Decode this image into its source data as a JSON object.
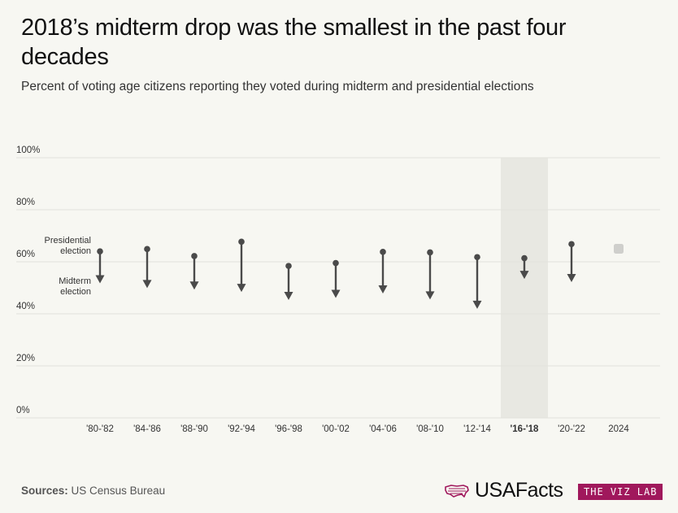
{
  "title": "2018’s midterm drop was the smallest in the past four decades",
  "subtitle": "Percent of voting age citizens reporting they voted during midterm and presidential elections",
  "source_label": "Sources:",
  "source_value": "US Census Bureau",
  "brand": {
    "name": "USAFacts",
    "tag": "THE VIZ LAB",
    "accent": "#a0185c"
  },
  "chart_data": {
    "type": "arrow-dot",
    "title": "2018’s midterm drop was the smallest in the past four decades",
    "subtitle": "Percent of voting age citizens reporting they voted during midterm and presidential elections",
    "ylim": [
      0,
      100
    ],
    "yticks": [
      "0%",
      "20%",
      "40%",
      "60%",
      "80%",
      "100%"
    ],
    "ytick_values": [
      0,
      20,
      40,
      60,
      80,
      100
    ],
    "grid": true,
    "annotations": {
      "presidential": "Presidential election",
      "midterm": "Midterm election"
    },
    "highlight": "'16-'18",
    "categories": [
      "'80-'82",
      "'84-'86",
      "'88-'90",
      "'92-'94",
      "'96-'98",
      "'00-'02",
      "'04-'06",
      "'08-'10",
      "'12-'14",
      "'16-'18",
      "'20-'22",
      "2024"
    ],
    "series": [
      {
        "name": "Presidential election",
        "values": [
          64,
          64.9,
          62.2,
          67.7,
          58.4,
          59.5,
          63.8,
          63.6,
          61.8,
          61.4,
          66.8,
          65
        ]
      },
      {
        "name": "Midterm election",
        "values": [
          51.7,
          49.9,
          49.3,
          48.4,
          45.3,
          46.1,
          47.8,
          45.5,
          41.9,
          53.4,
          52.2,
          null
        ]
      }
    ],
    "colors": {
      "arrow": "#4a4a4a",
      "pending": "#cfcfcc",
      "highlight_band": "#e8e8e2",
      "grid": "#e2e2dc"
    }
  }
}
